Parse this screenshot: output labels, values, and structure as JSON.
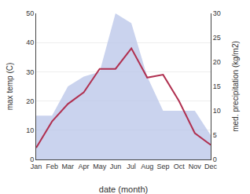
{
  "chart_data": {
    "type": "line",
    "xlabel": "date (month)",
    "ylabel": "max temp (C)",
    "y2label": "med. precipitation (kg/m2)",
    "categories": [
      "Jan",
      "Feb",
      "Mar",
      "Apr",
      "May",
      "Jun",
      "Jul",
      "Aug",
      "Sep",
      "Oct",
      "Nov",
      "Dec"
    ],
    "series": [
      {
        "type": "area",
        "color": "#b8c4e8",
        "axis": "y2",
        "values": [
          9,
          9,
          15,
          17,
          18,
          30,
          28,
          17,
          10,
          10,
          10,
          5
        ]
      },
      {
        "type": "line",
        "color": "#b03050",
        "values": [
          4,
          13,
          19,
          23,
          31,
          31,
          38,
          28,
          29,
          20,
          9,
          5
        ]
      }
    ],
    "ylim": [
      0,
      50
    ],
    "yticks": [
      0,
      10,
      20,
      30,
      40,
      50
    ],
    "y2lim": [
      0,
      30
    ],
    "y2ticks": [
      0,
      5,
      10,
      15,
      20,
      25,
      30
    ],
    "grid": true
  }
}
